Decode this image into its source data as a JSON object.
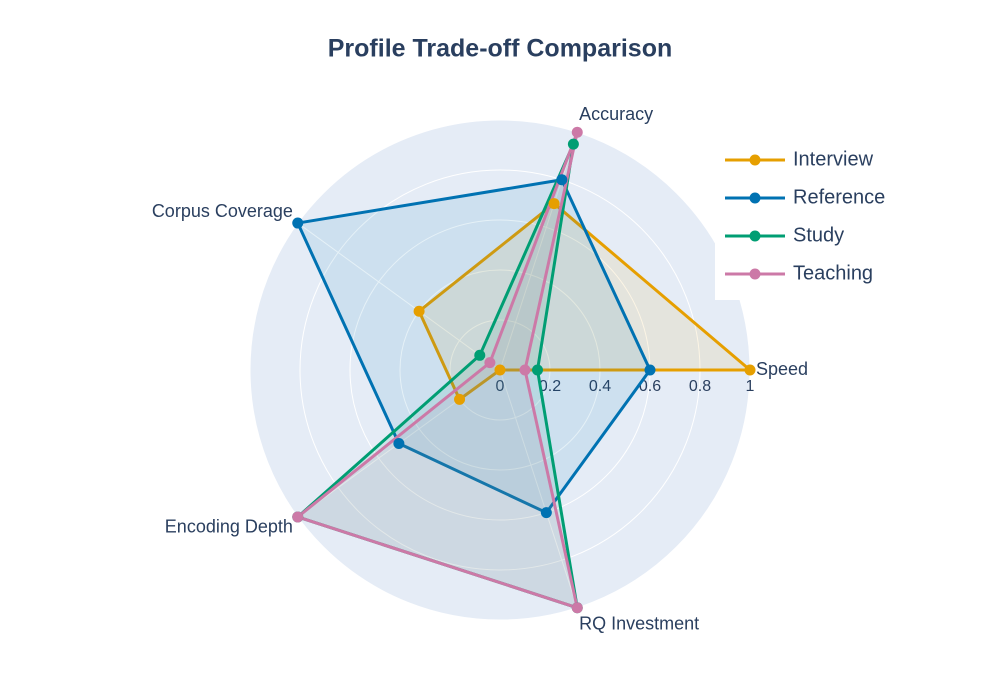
{
  "chart_data": {
    "type": "radar",
    "title": "Profile Trade-off Comparison",
    "categories": [
      "Speed",
      "Accuracy",
      "Corpus Coverage",
      "Encoding Depth",
      "RQ Investment"
    ],
    "rlim": [
      0,
      1
    ],
    "rticks": [
      0,
      0.2,
      0.4,
      0.6,
      0.8,
      1
    ],
    "grid": true,
    "legend": "top-right",
    "series": [
      {
        "name": "Interview",
        "color": "#E69F00",
        "values": [
          1,
          0.7,
          0.4,
          0.2,
          0
        ]
      },
      {
        "name": "Reference",
        "color": "#0072B2",
        "values": [
          0.6,
          0.8,
          1,
          0.5,
          0.6
        ]
      },
      {
        "name": "Study",
        "color": "#009E73",
        "values": [
          0.15,
          0.95,
          0.1,
          1,
          1
        ]
      },
      {
        "name": "Teaching",
        "color": "#CC79A7",
        "values": [
          0.1,
          1,
          0.05,
          1,
          1
        ]
      }
    ]
  }
}
